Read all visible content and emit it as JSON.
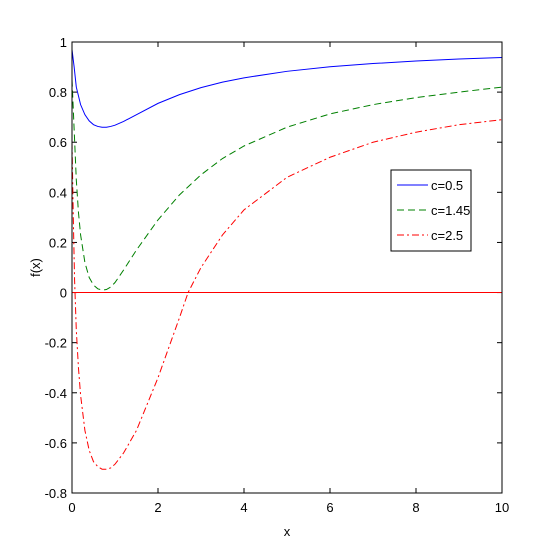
{
  "chart_data": {
    "type": "line",
    "title": "",
    "xlabel": "x",
    "ylabel": "f(x)",
    "xlim": [
      0,
      10
    ],
    "ylim": [
      -0.8,
      1
    ],
    "x_ticks": [
      "0",
      "2",
      "4",
      "6",
      "8",
      "10"
    ],
    "y_ticks": [
      "-0.8",
      "-0.6",
      "-0.4",
      "-0.2",
      "0",
      "0.2",
      "0.4",
      "0.6",
      "0.8",
      "1"
    ],
    "x_tick_values": [
      0,
      2,
      4,
      6,
      8,
      10
    ],
    "y_tick_values": [
      -0.8,
      -0.6,
      -0.4,
      -0.2,
      0,
      0.2,
      0.4,
      0.6,
      0.8,
      1
    ],
    "grid": false,
    "legend_position": "right",
    "reference_line": {
      "y": 0,
      "color": "#ff0000"
    },
    "series": [
      {
        "name": "c=0.5",
        "color": "#0000ff",
        "style": "solid",
        "x": [
          0.0,
          0.05,
          0.1,
          0.2,
          0.3,
          0.4,
          0.5,
          0.6,
          0.7,
          0.8,
          0.9,
          1.0,
          1.2,
          1.5,
          2.0,
          2.5,
          3.0,
          3.5,
          4.0,
          5.0,
          6.0,
          7.0,
          8.0,
          9.0,
          10.0
        ],
        "y": [
          0.97,
          0.9,
          0.82,
          0.75,
          0.71,
          0.685,
          0.67,
          0.663,
          0.66,
          0.66,
          0.663,
          0.668,
          0.683,
          0.71,
          0.755,
          0.79,
          0.818,
          0.84,
          0.857,
          0.883,
          0.901,
          0.914,
          0.924,
          0.932,
          0.938
        ]
      },
      {
        "name": "c=1.45",
        "color": "#008000",
        "style": "dashed",
        "x": [
          0.0,
          0.05,
          0.1,
          0.15,
          0.2,
          0.3,
          0.4,
          0.5,
          0.6,
          0.7,
          0.8,
          0.9,
          1.0,
          1.2,
          1.5,
          2.0,
          2.5,
          3.0,
          3.5,
          4.0,
          5.0,
          6.0,
          7.0,
          8.0,
          9.0,
          10.0
        ],
        "y": [
          0.85,
          0.65,
          0.45,
          0.32,
          0.23,
          0.12,
          0.06,
          0.03,
          0.015,
          0.01,
          0.012,
          0.022,
          0.04,
          0.09,
          0.17,
          0.29,
          0.39,
          0.47,
          0.535,
          0.585,
          0.66,
          0.713,
          0.75,
          0.778,
          0.8,
          0.82
        ]
      },
      {
        "name": "c=2.5",
        "color": "#ff0000",
        "style": "dashdot",
        "x": [
          0.0,
          0.03,
          0.06,
          0.1,
          0.15,
          0.2,
          0.3,
          0.4,
          0.5,
          0.6,
          0.7,
          0.8,
          0.9,
          1.0,
          1.2,
          1.5,
          2.0,
          2.5,
          2.7,
          3.0,
          3.5,
          4.0,
          5.0,
          6.0,
          7.0,
          8.0,
          9.0,
          10.0
        ],
        "y": [
          0.6,
          0.3,
          0.05,
          -0.15,
          -0.3,
          -0.41,
          -0.55,
          -0.63,
          -0.675,
          -0.695,
          -0.705,
          -0.705,
          -0.7,
          -0.685,
          -0.64,
          -0.55,
          -0.34,
          -0.1,
          0.0,
          0.1,
          0.23,
          0.33,
          0.46,
          0.54,
          0.6,
          0.64,
          0.67,
          0.69
        ]
      }
    ]
  }
}
